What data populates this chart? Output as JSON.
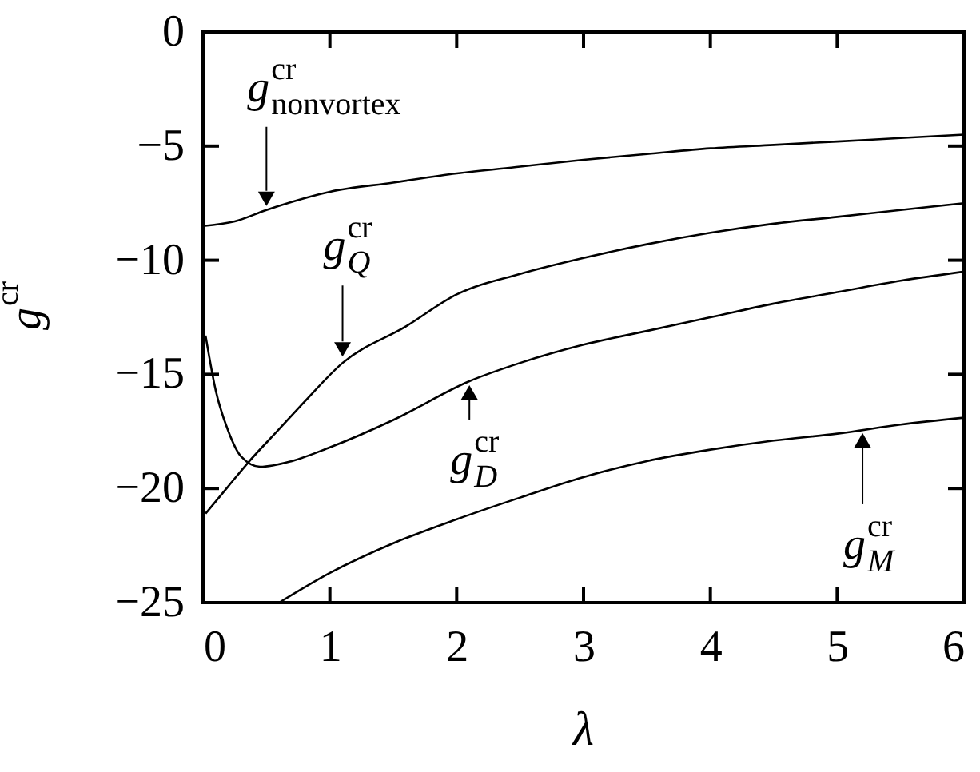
{
  "chart_data": {
    "type": "line",
    "xlabel": "λ",
    "ylabel": "g$^{cr}$",
    "xlim": [
      0,
      6
    ],
    "ylim": [
      -25,
      0
    ],
    "xticks": [
      0,
      1,
      2,
      3,
      4,
      5,
      6
    ],
    "yticks": [
      0,
      -5,
      -10,
      -15,
      -20,
      -25
    ],
    "grid": false,
    "marker": "none",
    "line_style": "solid",
    "series": [
      {
        "color": "#000000",
        "x": [
          0,
          0.25,
          0.5,
          1,
          1.5,
          2,
          2.5,
          3,
          3.5,
          4,
          4.5,
          5,
          5.5,
          6
        ],
        "values": [
          -8.5,
          -8.3,
          -7.8,
          -7.0,
          -6.6,
          -6.2,
          -5.9,
          -5.6,
          -5.35,
          -5.1,
          -4.95,
          -4.8,
          -4.65,
          -4.5
        ]
      },
      {
        "color": "#000000",
        "x": [
          0.02,
          0.2,
          0.35,
          0.6,
          0.8,
          1.1,
          1.6,
          2,
          2.5,
          3,
          3.5,
          4,
          4.5,
          5,
          5.5,
          6
        ],
        "values": [
          -21.1,
          -19.9,
          -18.9,
          -17.4,
          -16.2,
          -14.5,
          -12.9,
          -11.5,
          -10.6,
          -9.9,
          -9.3,
          -8.8,
          -8.4,
          -8.1,
          -7.8,
          -7.5
        ]
      },
      {
        "color": "#000000",
        "x": [
          0.02,
          0.1,
          0.2,
          0.3,
          0.45,
          0.7,
          1,
          1.5,
          2.1,
          2.5,
          3,
          3.5,
          4,
          4.5,
          5,
          5.5,
          6
        ],
        "values": [
          -13.3,
          -15.7,
          -17.5,
          -18.6,
          -19.05,
          -18.8,
          -18.2,
          -17.0,
          -15.3,
          -14.5,
          -13.7,
          -13.1,
          -12.5,
          -11.9,
          -11.4,
          -10.9,
          -10.5
        ]
      },
      {
        "color": "#000000",
        "x": [
          0.6,
          1,
          1.5,
          2,
          2.5,
          3,
          3.5,
          4,
          4.5,
          5,
          5.5,
          6
        ],
        "values": [
          -25,
          -23.7,
          -22.4,
          -21.35,
          -20.4,
          -19.5,
          -18.8,
          -18.3,
          -17.9,
          -17.6,
          -17.2,
          -16.9
        ]
      }
    ],
    "annotations": [
      {
        "text": "g$^{cr}$$_{nonvortex}$",
        "x": 0.5,
        "y": -7.8
      },
      {
        "text": "g$^{cr}$$_{Q}$",
        "x": 1.1,
        "y": -14.4
      },
      {
        "text": "g$^{cr}$$_{D}$",
        "x": 2.1,
        "y": -15.3
      },
      {
        "text": "g$^{cr}$$_{M}$",
        "x": 5.2,
        "y": -17.4
      }
    ]
  }
}
